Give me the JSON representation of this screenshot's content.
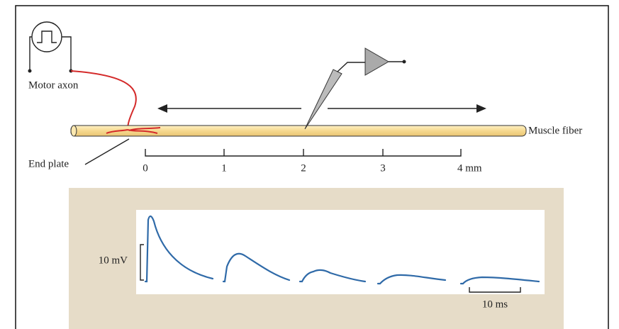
{
  "labels": {
    "motor_axon": "Motor axon",
    "muscle_fiber": "Muscle fiber",
    "end_plate": "End plate"
  },
  "distance_scale": {
    "ticks": [
      "0",
      "1",
      "2",
      "3",
      "4 mm"
    ]
  },
  "recording": {
    "voltage_scale": "10 mV",
    "time_scale": "10 ms"
  }
}
